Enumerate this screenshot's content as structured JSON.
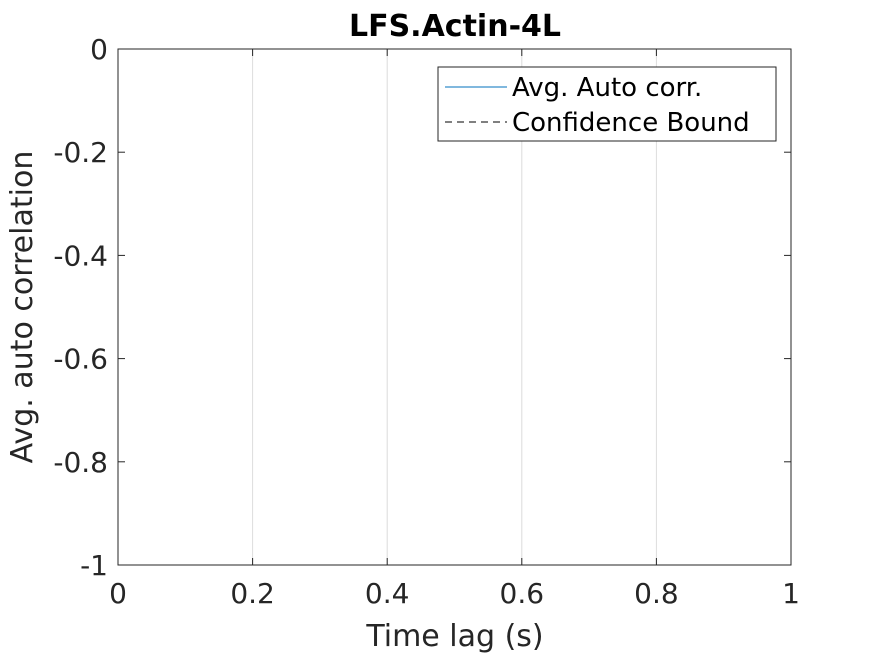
{
  "chart_data": {
    "type": "line",
    "title": "LFS.Actin-4L",
    "xlabel": "Time lag (s)",
    "ylabel": "Avg. auto correlation",
    "xlim": [
      0,
      1
    ],
    "ylim": [
      -1,
      0
    ],
    "x_ticks": [
      0,
      0.2,
      0.4,
      0.6,
      0.8,
      1
    ],
    "x_tick_labels": [
      "0",
      "0.2",
      "0.4",
      "0.6",
      "0.8",
      "1"
    ],
    "y_ticks": [
      0,
      -0.2,
      -0.4,
      -0.6,
      -0.8,
      -1
    ],
    "y_tick_labels": [
      "0",
      "-0.2",
      "-0.4",
      "-0.6",
      "-0.8",
      "-1"
    ],
    "x_grid": true,
    "y_grid": false,
    "legend_position": "top-right",
    "series": [
      {
        "name": "Avg. Auto corr.",
        "style": "solid",
        "color": "#0072bd",
        "x": [],
        "y": []
      },
      {
        "name": "Confidence Bound",
        "style": "dashed",
        "color": "#000000",
        "x": [],
        "y": []
      }
    ]
  }
}
